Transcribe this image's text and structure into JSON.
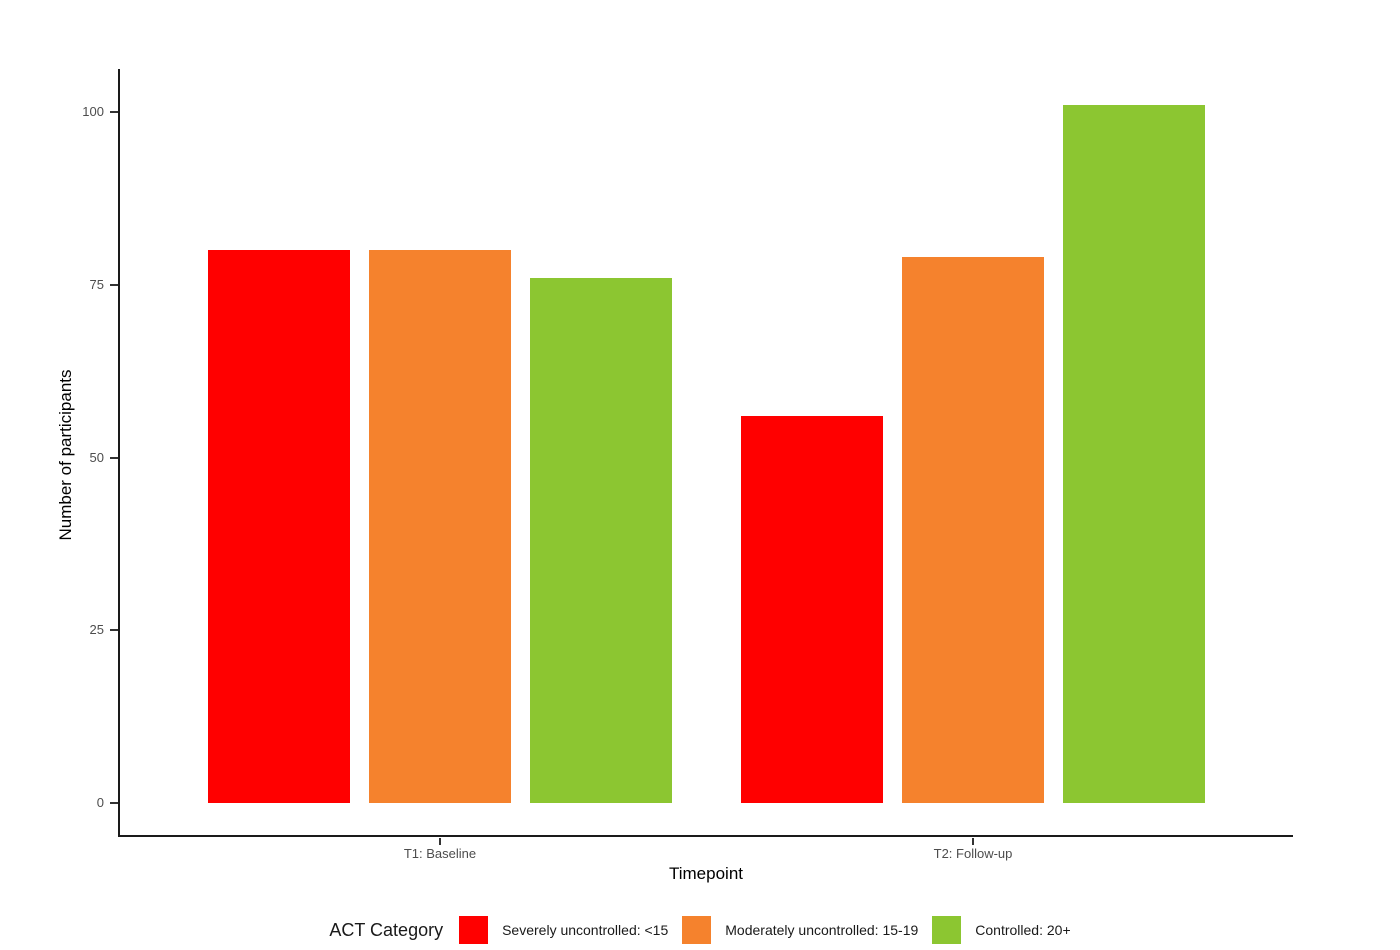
{
  "chart_data": {
    "type": "bar",
    "title": "",
    "xlabel": "Timepoint",
    "ylabel": "Number of participants",
    "categories": [
      "T1: Baseline",
      "T2: Follow-up"
    ],
    "series": [
      {
        "name": "Severely uncontrolled: <15",
        "color": "#FF0000",
        "values": [
          80,
          56
        ]
      },
      {
        "name": "Moderately uncontrolled: 15-19",
        "color": "#F5822D",
        "values": [
          80,
          79
        ]
      },
      {
        "name": "Controlled: 20+",
        "color": "#8CC631",
        "values": [
          76,
          101
        ]
      }
    ],
    "yticks": [
      0,
      25,
      50,
      75,
      100
    ],
    "ylim": [
      0,
      106
    ],
    "grid": false,
    "legend_position": "bottom"
  },
  "legend": {
    "title": "ACT Category"
  }
}
